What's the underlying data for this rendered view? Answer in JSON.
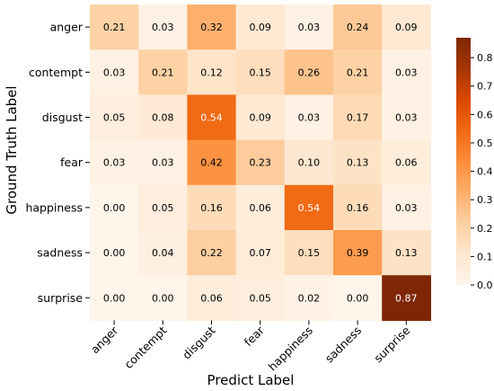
{
  "chart_data": {
    "type": "heatmap",
    "xlabel": "Predict Label",
    "ylabel": "Ground Truth Label",
    "x_categories": [
      "anger",
      "contempt",
      "disgust",
      "fear",
      "happiness",
      "sadness",
      "surprise"
    ],
    "y_categories": [
      "anger",
      "contempt",
      "disgust",
      "fear",
      "happiness",
      "sadness",
      "surprise"
    ],
    "values": [
      [
        "0.21",
        "0.03",
        "0.32",
        "0.09",
        "0.03",
        "0.24",
        "0.09"
      ],
      [
        "0.03",
        "0.21",
        "0.12",
        "0.15",
        "0.26",
        "0.21",
        "0.03"
      ],
      [
        "0.05",
        "0.08",
        "0.54",
        "0.09",
        "0.03",
        "0.17",
        "0.03"
      ],
      [
        "0.03",
        "0.03",
        "0.42",
        "0.23",
        "0.10",
        "0.13",
        "0.06"
      ],
      [
        "0.00",
        "0.05",
        "0.16",
        "0.06",
        "0.54",
        "0.16",
        "0.03"
      ],
      [
        "0.00",
        "0.04",
        "0.22",
        "0.07",
        "0.15",
        "0.39",
        "0.13"
      ],
      [
        "0.00",
        "0.00",
        "0.06",
        "0.05",
        "0.02",
        "0.00",
        "0.87"
      ]
    ],
    "colorbar": {
      "min": 0.0,
      "max": 0.87,
      "ticks": [
        "0.0",
        "0.1",
        "0.2",
        "0.3",
        "0.4",
        "0.5",
        "0.6",
        "0.7",
        "0.8"
      ],
      "colormap": "Oranges"
    },
    "grid": false
  }
}
